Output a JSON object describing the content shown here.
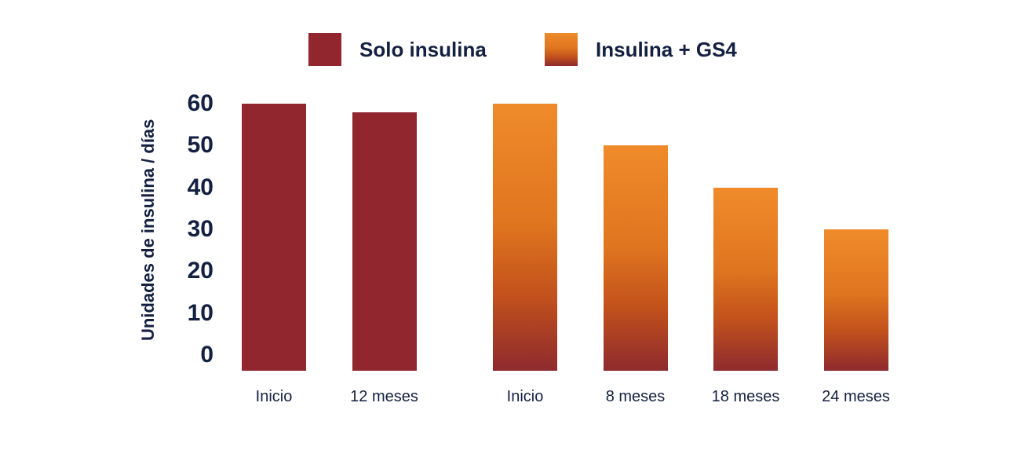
{
  "colors": {
    "text_navy": "#142040",
    "solo_insulina_red": "#92262e",
    "gradient_stops": [
      "#ef8b2b",
      "#e0751f",
      "#c2511c",
      "#8e2a2e"
    ],
    "background": "#ffffff"
  },
  "chart_data": {
    "type": "bar",
    "title": "",
    "ylabel": "Unidades de insulina / días",
    "xlabel": "",
    "ylim": [
      0,
      60
    ],
    "yticks": [
      0,
      10,
      20,
      30,
      40,
      50,
      60
    ],
    "grid": false,
    "legend_position": "top",
    "series": [
      {
        "name": "Solo insulina",
        "color": "#92262e",
        "points": [
          {
            "label": "Inicio",
            "value": 60
          },
          {
            "label": "12 meses",
            "value": 58
          }
        ]
      },
      {
        "name": "Insulina + GS4",
        "gradient": [
          "#ef8b2b",
          "#e0751f",
          "#c2511c",
          "#8e2a2e"
        ],
        "points": [
          {
            "label": "Inicio",
            "value": 60
          },
          {
            "label": "8 meses",
            "value": 50
          },
          {
            "label": "18 meses",
            "value": 40
          },
          {
            "label": "24 meses",
            "value": 30
          }
        ]
      }
    ]
  }
}
